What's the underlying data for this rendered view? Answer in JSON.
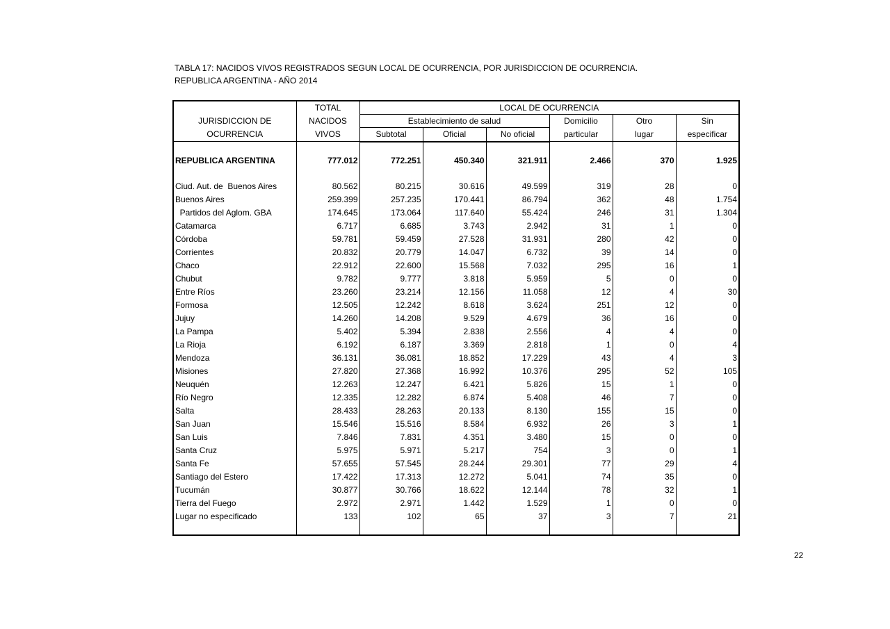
{
  "title_line1": "TABLA 17: NACIDOS VIVOS REGISTRADOS SEGUN LOCAL DE OCURRENCIA, POR JURISDICCION  DE OCURRENCIA.",
  "title_line2": "REPUBLICA ARGENTINA - AÑO 2014",
  "headers": {
    "jurisdiccion_1": "JURISDICCION  DE",
    "jurisdiccion_2": "OCURRENCIA",
    "total_1": "TOTAL",
    "total_2": "NACIDOS",
    "total_3": "VIVOS",
    "local": "LOCAL  DE OCURRENCIA",
    "establecimiento": "Establecimiento de salud",
    "subtotal": "Subtotal",
    "oficial": "Oficial",
    "no_oficial": "No oficial",
    "domicilio_1": "Domicilio",
    "domicilio_2": "particular",
    "otro_1": "Otro",
    "otro_2": "lugar",
    "sin_1": "Sin",
    "sin_2": "especificar"
  },
  "total_row": [
    "REPUBLICA ARGENTINA",
    "777.012",
    "772.251",
    "450.340",
    "321.911",
    "2.466",
    "370",
    "1.925"
  ],
  "rows": [
    [
      "Ciud. Aut. de  Buenos Aires",
      "80.562",
      "80.215",
      "30.616",
      "49.599",
      "319",
      "28",
      "0"
    ],
    [
      "Buenos Aires",
      "259.399",
      "257.235",
      "170.441",
      "86.794",
      "362",
      "48",
      "1.754"
    ],
    [
      "  Partidos del Aglom. GBA",
      "174.645",
      "173.064",
      "117.640",
      "55.424",
      "246",
      "31",
      "1.304"
    ],
    [
      "Catamarca",
      "6.717",
      "6.685",
      "3.743",
      "2.942",
      "31",
      "1",
      "0"
    ],
    [
      "Córdoba",
      "59.781",
      "59.459",
      "27.528",
      "31.931",
      "280",
      "42",
      "0"
    ],
    [
      "Corrientes",
      "20.832",
      "20.779",
      "14.047",
      "6.732",
      "39",
      "14",
      "0"
    ],
    [
      "Chaco",
      "22.912",
      "22.600",
      "15.568",
      "7.032",
      "295",
      "16",
      "1"
    ],
    [
      "Chubut",
      "9.782",
      "9.777",
      "3.818",
      "5.959",
      "5",
      "0",
      "0"
    ],
    [
      "Entre Ríos",
      "23.260",
      "23.214",
      "12.156",
      "11.058",
      "12",
      "4",
      "30"
    ],
    [
      "Formosa",
      "12.505",
      "12.242",
      "8.618",
      "3.624",
      "251",
      "12",
      "0"
    ],
    [
      "Jujuy",
      "14.260",
      "14.208",
      "9.529",
      "4.679",
      "36",
      "16",
      "0"
    ],
    [
      "La Pampa",
      "5.402",
      "5.394",
      "2.838",
      "2.556",
      "4",
      "4",
      "0"
    ],
    [
      "La Rioja",
      "6.192",
      "6.187",
      "3.369",
      "2.818",
      "1",
      "0",
      "4"
    ],
    [
      "Mendoza",
      "36.131",
      "36.081",
      "18.852",
      "17.229",
      "43",
      "4",
      "3"
    ],
    [
      "Misiones",
      "27.820",
      "27.368",
      "16.992",
      "10.376",
      "295",
      "52",
      "105"
    ],
    [
      "Neuquén",
      "12.263",
      "12.247",
      "6.421",
      "5.826",
      "15",
      "1",
      "0"
    ],
    [
      "Río Negro",
      "12.335",
      "12.282",
      "6.874",
      "5.408",
      "46",
      "7",
      "0"
    ],
    [
      "Salta",
      "28.433",
      "28.263",
      "20.133",
      "8.130",
      "155",
      "15",
      "0"
    ],
    [
      "San Juan",
      "15.546",
      "15.516",
      "8.584",
      "6.932",
      "26",
      "3",
      "1"
    ],
    [
      "San Luis",
      "7.846",
      "7.831",
      "4.351",
      "3.480",
      "15",
      "0",
      "0"
    ],
    [
      "Santa Cruz",
      "5.975",
      "5.971",
      "5.217",
      "754",
      "3",
      "0",
      "1"
    ],
    [
      "Santa Fe",
      "57.655",
      "57.545",
      "28.244",
      "29.301",
      "77",
      "29",
      "4"
    ],
    [
      "Santiago del Estero",
      "17.422",
      "17.313",
      "12.272",
      "5.041",
      "74",
      "35",
      "0"
    ],
    [
      "Tucumán",
      "30.877",
      "30.766",
      "18.622",
      "12.144",
      "78",
      "32",
      "1"
    ],
    [
      "Tierra del Fuego",
      "2.972",
      "2.971",
      "1.442",
      "1.529",
      "1",
      "0",
      "0"
    ],
    [
      "Lugar no especificado",
      "133",
      "102",
      "65",
      "37",
      "3",
      "7",
      "21"
    ]
  ],
  "page_number": "22"
}
